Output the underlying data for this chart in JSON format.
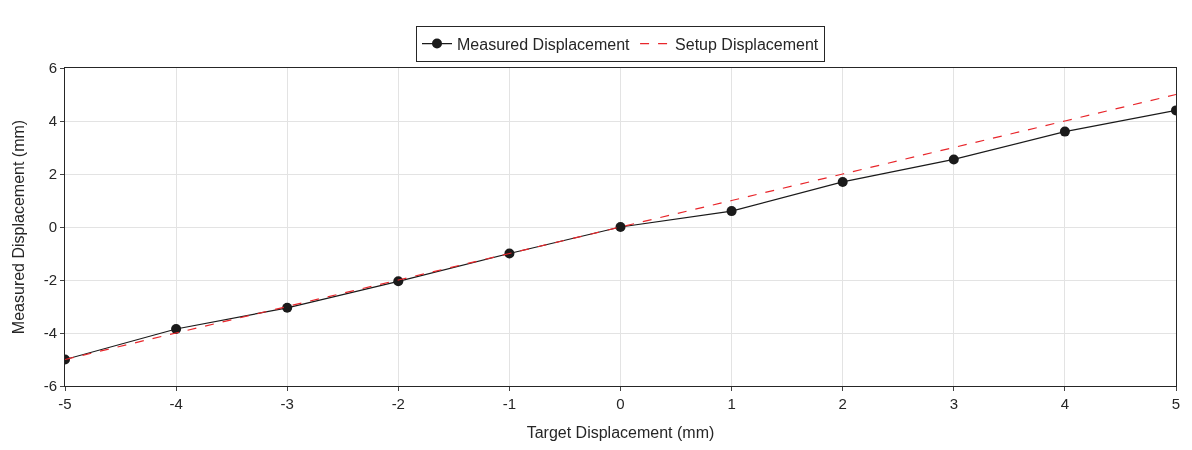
{
  "chart_data": {
    "type": "line",
    "xlabel": "Target Displacement (mm)",
    "ylabel": "Measured Displacement (mm)",
    "x": [
      -5,
      -4,
      -3,
      -2,
      -1,
      0,
      1,
      2,
      3,
      4,
      5
    ],
    "series": [
      {
        "name": "Measured Displacement",
        "color": "#1a1a1a",
        "values": [
          -5.0,
          -3.85,
          -3.05,
          -2.05,
          -1.0,
          0,
          0.6,
          1.7,
          2.55,
          3.6,
          4.4
        ],
        "marker": "circle",
        "line_style": "solid"
      },
      {
        "name": "Setup Displacement",
        "color": "#e8262b",
        "values": [
          -5,
          -4,
          -3,
          -2,
          -1,
          0,
          1,
          2,
          3,
          4,
          5
        ],
        "marker": "none",
        "line_style": "dashed"
      }
    ],
    "xlim": [
      -5,
      5
    ],
    "xticks": [
      -5,
      -4,
      -3,
      -2,
      -1,
      0,
      1,
      2,
      3,
      4,
      5
    ],
    "ylim": [
      -6,
      6
    ],
    "yticks": [
      -6,
      -4,
      -2,
      0,
      2,
      4,
      6
    ],
    "grid": true,
    "legend": "top"
  }
}
